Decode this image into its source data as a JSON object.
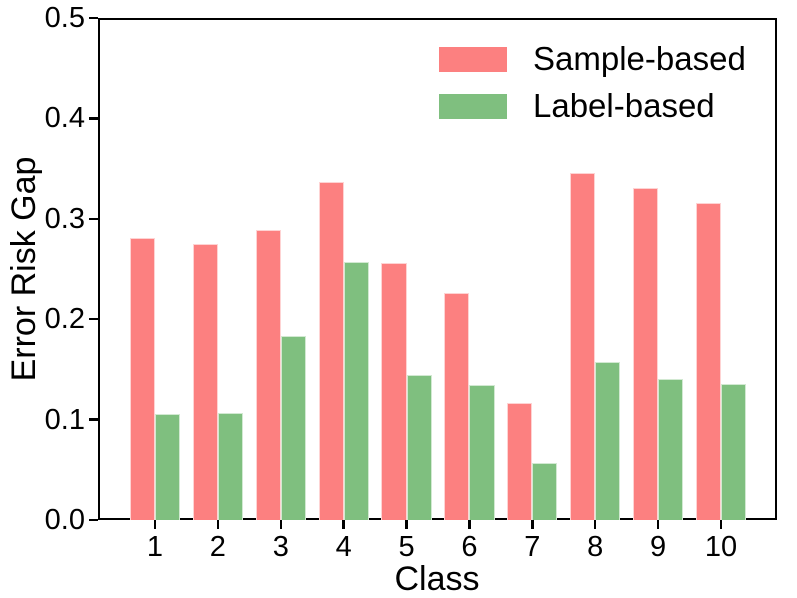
{
  "chart_data": {
    "type": "bar",
    "title": "",
    "xlabel": "Class",
    "ylabel": "Error Risk Gap",
    "categories": [
      "1",
      "2",
      "3",
      "4",
      "5",
      "6",
      "7",
      "8",
      "9",
      "10"
    ],
    "series": [
      {
        "name": "Sample-based",
        "color": "#FC8080",
        "values": [
          0.281,
          0.275,
          0.289,
          0.337,
          0.256,
          0.226,
          0.117,
          0.346,
          0.331,
          0.316
        ]
      },
      {
        "name": "Label-based",
        "color": "#7FBF7F",
        "values": [
          0.106,
          0.107,
          0.183,
          0.257,
          0.144,
          0.134,
          0.057,
          0.157,
          0.14,
          0.135
        ]
      }
    ],
    "ylim": [
      0.0,
      0.5
    ],
    "y_ticks": [
      "0.0",
      "0.1",
      "0.2",
      "0.3",
      "0.4",
      "0.5"
    ],
    "grid": false,
    "legend_position": "upper-right",
    "axis_color": "#000000",
    "background_color": "#FFFFFF"
  }
}
